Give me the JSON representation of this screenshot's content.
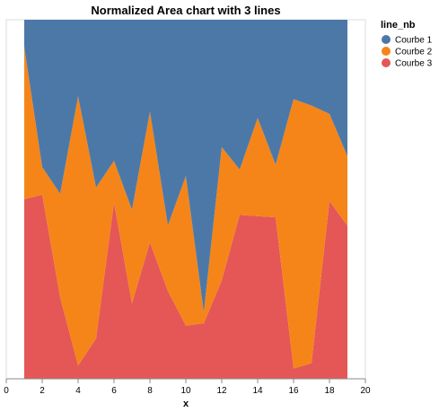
{
  "chart_data": {
    "type": "area",
    "stacked": true,
    "normalized": true,
    "title": "Normalized Area chart with 3 lines",
    "xlabel": "x",
    "ylabel": "",
    "xlim": [
      0,
      20
    ],
    "ylim": [
      0,
      1
    ],
    "x_ticks": [
      0,
      2,
      4,
      6,
      8,
      10,
      12,
      14,
      16,
      18,
      20
    ],
    "grid": false,
    "legend": {
      "title": "line_nb",
      "placement": "top-right"
    },
    "x": [
      1,
      2,
      3,
      4,
      5,
      6,
      7,
      8,
      9,
      10,
      11,
      12,
      13,
      14,
      15,
      16,
      17,
      18,
      19
    ],
    "series": [
      {
        "name": "Courbe 1",
        "color": "#4c78a8",
        "values": [
          0.09,
          0.64,
          0.62,
          0.23,
          0.5,
          0.44,
          0.73,
          0.33,
          0.75,
          0.47,
          0.79,
          0.22,
          0.53,
          0.32,
          0.44,
          0.23,
          0.44,
          0.27,
          0.49
        ]
      },
      {
        "name": "Courbe 2",
        "color": "#f58518",
        "values": [
          0.51,
          0.12,
          0.37,
          0.81,
          0.45,
          0.13,
          0.36,
          0.47,
          0.24,
          0.45,
          0.03,
          0.23,
          0.16,
          0.32,
          0.16,
          0.78,
          1.32,
          0.25,
          0.25
        ]
      },
      {
        "name": "Courbe 3",
        "color": "#e45756",
        "values": [
          0.6,
          0.8,
          0.29,
          0.04,
          0.12,
          0.55,
          0.29,
          0.49,
          0.32,
          0.16,
          0.15,
          0.17,
          0.58,
          0.53,
          0.49,
          0.03,
          0.08,
          0.51,
          0.55
        ]
      }
    ]
  }
}
